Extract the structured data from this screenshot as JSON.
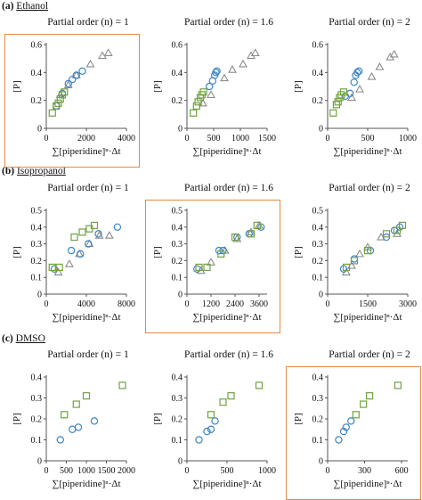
{
  "sections": [
    {
      "letter": "(a)",
      "name": "Ethanol"
    },
    {
      "letter": "(b)",
      "name": "Isopropanol"
    },
    {
      "letter": "(c)",
      "name": "DMSO"
    }
  ],
  "colors": {
    "triangle": "#8c8c8c",
    "circle": "#3d85c6",
    "square": "#70a33f",
    "highlight": "#e38b45",
    "axis": "#555555"
  },
  "chart_data": [
    {
      "type": "scatter",
      "title": "Partial order (n) = 1",
      "xlabel": "∑[piperidine]ⁿ·Δt",
      "ylabel": "[P]",
      "xlim": [
        0,
        4000
      ],
      "ylim": [
        0,
        0.6
      ],
      "xticks": [
        0,
        2000,
        4000
      ],
      "yticks": [
        0,
        0.2,
        0.4,
        0.6
      ],
      "highlighted": true,
      "series": [
        {
          "marker": "triangle",
          "points": [
            [
              700,
              0.24
            ],
            [
              1100,
              0.31
            ],
            [
              1500,
              0.38
            ],
            [
              2200,
              0.46
            ],
            [
              2800,
              0.52
            ],
            [
              3100,
              0.54
            ]
          ]
        },
        {
          "marker": "circle",
          "points": [
            [
              500,
              0.16
            ],
            [
              800,
              0.25
            ],
            [
              1100,
              0.32
            ],
            [
              1300,
              0.35
            ],
            [
              1500,
              0.38
            ],
            [
              1800,
              0.41
            ]
          ]
        },
        {
          "marker": "square",
          "points": [
            [
              300,
              0.11
            ],
            [
              500,
              0.16
            ],
            [
              600,
              0.18
            ],
            [
              700,
              0.21
            ],
            [
              800,
              0.24
            ],
            [
              900,
              0.26
            ]
          ]
        }
      ]
    },
    {
      "type": "scatter",
      "title": "Partial order (n) = 1.6",
      "xlabel": "∑[piperidine]ⁿ·Δt",
      "ylabel": "[P]",
      "xlim": [
        0,
        1500
      ],
      "ylim": [
        0,
        0.6
      ],
      "xticks": [
        0,
        500,
        1000,
        1500
      ],
      "yticks": [
        0,
        0.2,
        0.4,
        0.6
      ],
      "highlighted": false,
      "series": [
        {
          "marker": "triangle",
          "points": [
            [
              300,
              0.18
            ],
            [
              450,
              0.24
            ],
            [
              700,
              0.36
            ],
            [
              850,
              0.42
            ],
            [
              1050,
              0.46
            ],
            [
              1200,
              0.52
            ],
            [
              1280,
              0.54
            ]
          ]
        },
        {
          "marker": "circle",
          "points": [
            [
              420,
              0.3
            ],
            [
              480,
              0.34
            ],
            [
              520,
              0.38
            ],
            [
              540,
              0.4
            ],
            [
              560,
              0.41
            ]
          ]
        },
        {
          "marker": "square",
          "points": [
            [
              120,
              0.11
            ],
            [
              180,
              0.16
            ],
            [
              210,
              0.19
            ],
            [
              250,
              0.22
            ],
            [
              280,
              0.24
            ],
            [
              310,
              0.26
            ]
          ]
        }
      ]
    },
    {
      "type": "scatter",
      "title": "Partial order (n) = 2",
      "xlabel": "∑[piperidine]ⁿ·Δt",
      "ylabel": "[P]",
      "xlim": [
        0,
        1000
      ],
      "ylim": [
        0,
        0.6
      ],
      "xticks": [
        0,
        500,
        1000
      ],
      "yticks": [
        0,
        0.2,
        0.4,
        0.6
      ],
      "highlighted": false,
      "series": [
        {
          "marker": "triangle",
          "points": [
            [
              300,
              0.22
            ],
            [
              400,
              0.28
            ],
            [
              550,
              0.37
            ],
            [
              650,
              0.44
            ],
            [
              780,
              0.51
            ],
            [
              830,
              0.53
            ]
          ]
        },
        {
          "marker": "circle",
          "points": [
            [
              220,
              0.23
            ],
            [
              280,
              0.25
            ],
            [
              330,
              0.33
            ],
            [
              350,
              0.38
            ],
            [
              370,
              0.4
            ],
            [
              390,
              0.41
            ]
          ]
        },
        {
          "marker": "square",
          "points": [
            [
              70,
              0.11
            ],
            [
              110,
              0.17
            ],
            [
              130,
              0.19
            ],
            [
              150,
              0.22
            ],
            [
              170,
              0.24
            ],
            [
              200,
              0.26
            ]
          ]
        }
      ]
    },
    {
      "type": "scatter",
      "title": "Partial order (n) = 1",
      "xlabel": "∑[piperidine]ⁿ·Δt",
      "ylabel": "[P]",
      "xlim": [
        0,
        8000
      ],
      "ylim": [
        0,
        0.5
      ],
      "xticks": [
        0,
        4000,
        8000
      ],
      "yticks": [
        0,
        0.1,
        0.2,
        0.3,
        0.4,
        0.5
      ],
      "highlighted": false,
      "series": [
        {
          "marker": "triangle",
          "points": [
            [
              1200,
              0.13
            ],
            [
              2300,
              0.18
            ],
            [
              3300,
              0.24
            ],
            [
              4300,
              0.3
            ],
            [
              5300,
              0.35
            ],
            [
              6300,
              0.35
            ]
          ]
        },
        {
          "marker": "circle",
          "points": [
            [
              800,
              0.15
            ],
            [
              2500,
              0.26
            ],
            [
              3400,
              0.24
            ],
            [
              4200,
              0.3
            ],
            [
              5200,
              0.36
            ],
            [
              7100,
              0.4
            ]
          ]
        },
        {
          "marker": "square",
          "points": [
            [
              600,
              0.16
            ],
            [
              1300,
              0.16
            ],
            [
              2800,
              0.34
            ],
            [
              3600,
              0.37
            ],
            [
              4300,
              0.39
            ],
            [
              4800,
              0.41
            ]
          ]
        }
      ]
    },
    {
      "type": "scatter",
      "title": "Partial order (n) = 1.6",
      "xlabel": "∑[piperidine]ⁿ·Δt",
      "ylabel": "[P]",
      "xlim": [
        0,
        4000
      ],
      "ylim": [
        0,
        0.5
      ],
      "xticks": [
        0,
        1200,
        2400,
        3600
      ],
      "yticks": [
        0,
        0.1,
        0.2,
        0.3,
        0.4,
        0.5
      ],
      "highlighted": true,
      "series": [
        {
          "marker": "triangle",
          "points": [
            [
              700,
              0.14
            ],
            [
              1200,
              0.19
            ],
            [
              1900,
              0.26
            ],
            [
              2500,
              0.33
            ],
            [
              3200,
              0.37
            ],
            [
              3600,
              0.41
            ]
          ]
        },
        {
          "marker": "circle",
          "points": [
            [
              500,
              0.15
            ],
            [
              1600,
              0.26
            ],
            [
              1800,
              0.26
            ],
            [
              2500,
              0.34
            ],
            [
              3100,
              0.36
            ],
            [
              3700,
              0.4
            ]
          ]
        },
        {
          "marker": "square",
          "points": [
            [
              600,
              0.16
            ],
            [
              1000,
              0.16
            ],
            [
              1700,
              0.24
            ],
            [
              2400,
              0.34
            ],
            [
              3200,
              0.36
            ],
            [
              3500,
              0.41
            ]
          ]
        }
      ]
    },
    {
      "type": "scatter",
      "title": "Partial order (n) = 2",
      "xlabel": "∑[piperidine]ⁿ·Δt",
      "ylabel": "[P]",
      "xlim": [
        0,
        3000
      ],
      "ylim": [
        0,
        0.5
      ],
      "xticks": [
        0,
        1500,
        3000
      ],
      "yticks": [
        0,
        0.1,
        0.2,
        0.3,
        0.4,
        0.5
      ],
      "highlighted": false,
      "series": [
        {
          "marker": "triangle",
          "points": [
            [
              700,
              0.13
            ],
            [
              900,
              0.17
            ],
            [
              1200,
              0.24
            ],
            [
              1500,
              0.28
            ],
            [
              2000,
              0.34
            ],
            [
              2600,
              0.36
            ]
          ]
        },
        {
          "marker": "circle",
          "points": [
            [
              600,
              0.15
            ],
            [
              1000,
              0.21
            ],
            [
              1600,
              0.26
            ],
            [
              2200,
              0.34
            ],
            [
              2500,
              0.38
            ],
            [
              2700,
              0.4
            ]
          ]
        },
        {
          "marker": "square",
          "points": [
            [
              700,
              0.16
            ],
            [
              1000,
              0.2
            ],
            [
              1500,
              0.26
            ],
            [
              2200,
              0.36
            ],
            [
              2600,
              0.38
            ],
            [
              2800,
              0.41
            ]
          ]
        }
      ]
    },
    {
      "type": "scatter",
      "title": "Partial order (n) = 1",
      "xlabel": "∑[piperidine]ⁿ·Δt",
      "ylabel": "[P]",
      "xlim": [
        0,
        2000
      ],
      "ylim": [
        0,
        0.4
      ],
      "xticks": [
        0,
        500,
        1000,
        1500,
        2000
      ],
      "yticks": [
        0,
        0.1,
        0.2,
        0.3,
        0.4
      ],
      "highlighted": false,
      "series": [
        {
          "marker": "circle",
          "points": [
            [
              350,
              0.1
            ],
            [
              650,
              0.15
            ],
            [
              800,
              0.16
            ],
            [
              1200,
              0.19
            ]
          ]
        },
        {
          "marker": "square",
          "points": [
            [
              450,
              0.22
            ],
            [
              750,
              0.27
            ],
            [
              1000,
              0.31
            ],
            [
              1900,
              0.36
            ]
          ]
        }
      ]
    },
    {
      "type": "scatter",
      "title": "Partial order (n) = 1.6",
      "xlabel": "∑[piperidine]ⁿ·Δt",
      "ylabel": "[P]",
      "xlim": [
        0,
        1000
      ],
      "ylim": [
        0,
        0.4
      ],
      "xticks": [
        0,
        500,
        1000
      ],
      "yticks": [
        0,
        0.1,
        0.2,
        0.3,
        0.4
      ],
      "highlighted": false,
      "series": [
        {
          "marker": "circle",
          "points": [
            [
              150,
              0.1
            ],
            [
              250,
              0.14
            ],
            [
              300,
              0.15
            ],
            [
              350,
              0.19
            ]
          ]
        },
        {
          "marker": "square",
          "points": [
            [
              300,
              0.22
            ],
            [
              450,
              0.28
            ],
            [
              550,
              0.31
            ],
            [
              900,
              0.36
            ]
          ]
        }
      ]
    },
    {
      "type": "scatter",
      "title": "Partial order (n) = 2",
      "xlabel": "∑[piperidine]ⁿ·Δt",
      "ylabel": "[P]",
      "xlim": [
        0,
        650
      ],
      "ylim": [
        0,
        0.4
      ],
      "xticks": [
        0,
        300,
        600
      ],
      "yticks": [
        0,
        0.1,
        0.2,
        0.3,
        0.4
      ],
      "highlighted": true,
      "series": [
        {
          "marker": "circle",
          "points": [
            [
              90,
              0.1
            ],
            [
              130,
              0.14
            ],
            [
              150,
              0.16
            ],
            [
              190,
              0.19
            ]
          ]
        },
        {
          "marker": "square",
          "points": [
            [
              230,
              0.22
            ],
            [
              290,
              0.27
            ],
            [
              340,
              0.31
            ],
            [
              570,
              0.36
            ]
          ]
        }
      ]
    }
  ]
}
